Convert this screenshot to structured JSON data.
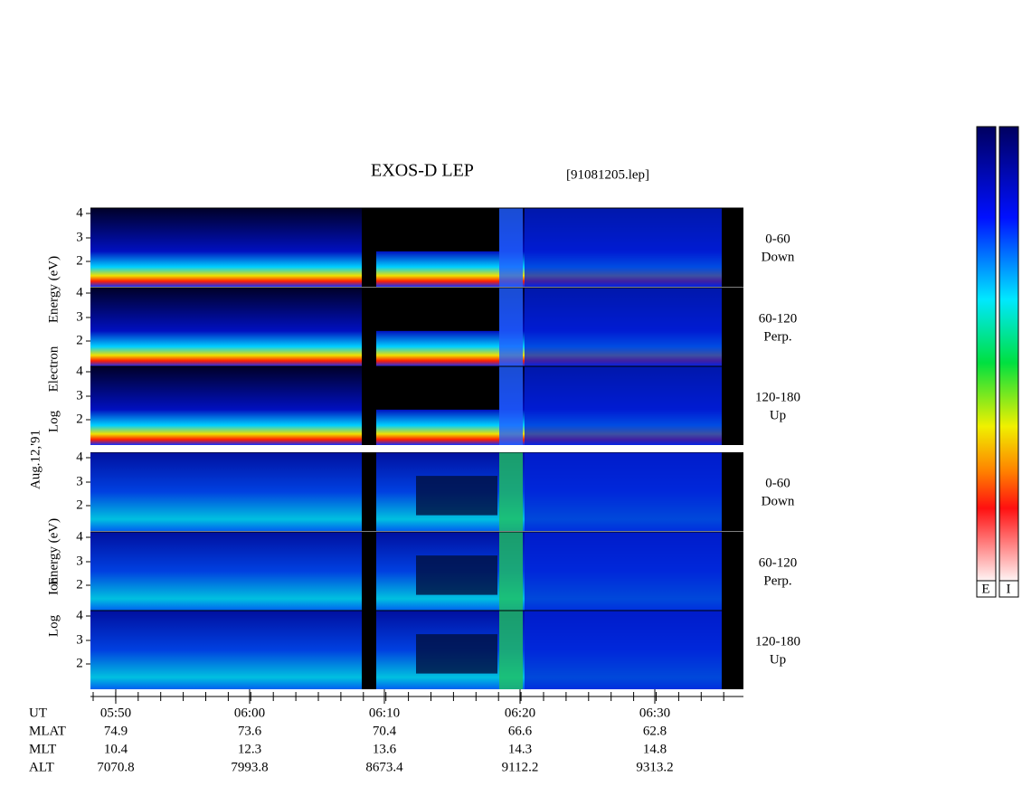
{
  "header": {
    "title": "EXOS-D LEP",
    "file": "[91081205.lep]"
  },
  "left_labels": {
    "electron": [
      "Log",
      "Electron",
      "Energy (eV)"
    ],
    "date": "Aug.12,'91",
    "ion": [
      "Log",
      "Ion",
      "Energy (eV)"
    ]
  },
  "energy_ticks": [
    "4",
    "3",
    "2"
  ],
  "panels": [
    {
      "range": "0-60",
      "direction": "Down"
    },
    {
      "range": "60-120",
      "direction": "Perp."
    },
    {
      "range": "120-180",
      "direction": "Up"
    }
  ],
  "time_table": {
    "rows": [
      [
        "UT",
        "05:50",
        "06:00",
        "06:10",
        "06:20",
        "06:30"
      ],
      [
        "MLAT",
        "74.9",
        "73.6",
        "70.4",
        "66.6",
        "62.8"
      ],
      [
        "MLT",
        "10.4",
        "12.3",
        "13.6",
        "14.3",
        "14.8"
      ],
      [
        "ALT",
        "7070.8",
        "7993.8",
        "8673.4",
        "9112.2",
        "9313.2"
      ]
    ]
  },
  "colorbar_labels": [
    "E",
    "I"
  ]
}
